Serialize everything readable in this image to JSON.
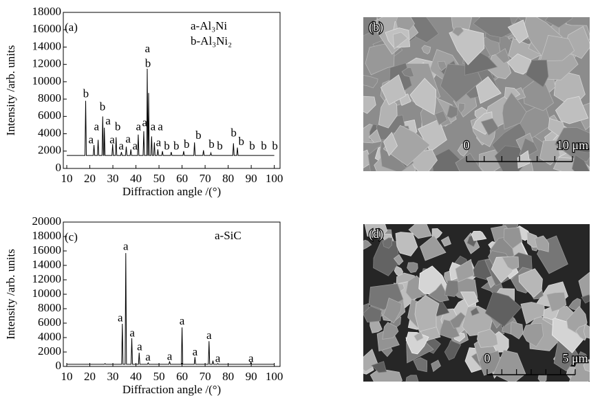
{
  "chart_data": [
    {
      "type": "line",
      "panel_label": "(a)",
      "legend": [
        "a-Al₃Ni",
        "b-Al₃Ni₂"
      ],
      "ylabel": "Intensity /arb. units",
      "xlabel": "Diffraction angle /(°)",
      "xlim": [
        8.5,
        102.5
      ],
      "ylim": [
        0,
        18000
      ],
      "xticks": [
        10,
        20,
        30,
        40,
        50,
        60,
        70,
        80,
        90,
        100
      ],
      "yticks": [
        0,
        2000,
        4000,
        6000,
        8000,
        10000,
        12000,
        14000,
        16000,
        18000
      ],
      "color": "#000000",
      "x": [
        10,
        17.9,
        18.2,
        18.5,
        21.5,
        21.8,
        22.1,
        23.3,
        23.6,
        23.9,
        25.3,
        25.6,
        25.9,
        26.1,
        26.3,
        26.6,
        29.6,
        29.9,
        30.2,
        31.1,
        31.4,
        31.7,
        33.4,
        33.7,
        34.0,
        35.5,
        35.8,
        36.1,
        37.5,
        37.8,
        38.1,
        40.7,
        41.0,
        41.3,
        43.1,
        43.4,
        43.7,
        44.7,
        44.9,
        45.2,
        45.3,
        45.5,
        45.8,
        46.5,
        46.8,
        47.1,
        47.7,
        48.0,
        48.3,
        49.2,
        49.5,
        49.8,
        51.2,
        51.5,
        51.8,
        55.0,
        55.3,
        55.6,
        60.4,
        60.7,
        61.0,
        65.1,
        65.4,
        65.7,
        69.0,
        69.3,
        69.6,
        72.2,
        72.5,
        72.8,
        82.0,
        82.3,
        82.6,
        83.7,
        84.0,
        84.3,
        100
      ],
      "values": [
        1500,
        1500,
        7800,
        1500,
        1500,
        2700,
        1500,
        1500,
        3300,
        1500,
        1500,
        6000,
        1500,
        1500,
        4700,
        1500,
        1500,
        2800,
        1500,
        1500,
        3600,
        1500,
        1500,
        1900,
        1500,
        1500,
        2500,
        1500,
        1500,
        2200,
        1500,
        1500,
        3900,
        1500,
        1500,
        4300,
        1500,
        1500,
        11500,
        1500,
        1500,
        8700,
        1500,
        1500,
        3700,
        1500,
        1500,
        3000,
        1500,
        1500,
        2200,
        1500,
        1500,
        2000,
        1500,
        1500,
        1900,
        1500,
        1500,
        2000,
        1500,
        1500,
        3000,
        1500,
        1500,
        2100,
        1500,
        1500,
        1800,
        1500,
        1500,
        2900,
        1500,
        1500,
        2400,
        1500,
        1500
      ],
      "annotations": [
        {
          "x": 18.3,
          "y": 8500,
          "text": "b"
        },
        {
          "x": 20.5,
          "y": 3200,
          "text": "a"
        },
        {
          "x": 22.9,
          "y": 4700,
          "text": "a"
        },
        {
          "x": 25.5,
          "y": 7000,
          "text": "b"
        },
        {
          "x": 27.9,
          "y": 5400,
          "text": "a"
        },
        {
          "x": 29.7,
          "y": 3200,
          "text": "a"
        },
        {
          "x": 32.1,
          "y": 4700,
          "text": "b"
        },
        {
          "x": 33.6,
          "y": 2500,
          "text": "a"
        },
        {
          "x": 36.6,
          "y": 3300,
          "text": "a"
        },
        {
          "x": 39.6,
          "y": 2500,
          "text": "a"
        },
        {
          "x": 41.1,
          "y": 4700,
          "text": "a"
        },
        {
          "x": 43.8,
          "y": 5200,
          "text": "a"
        },
        {
          "x": 45.0,
          "y": 13700,
          "text": "a"
        },
        {
          "x": 45.2,
          "y": 12000,
          "text": "b"
        },
        {
          "x": 47.4,
          "y": 4700,
          "text": "a"
        },
        {
          "x": 49.8,
          "y": 2900,
          "text": "a"
        },
        {
          "x": 50.6,
          "y": 4700,
          "text": "a"
        },
        {
          "x": 53.4,
          "y": 2500,
          "text": "b"
        },
        {
          "x": 57.5,
          "y": 2500,
          "text": "b"
        },
        {
          "x": 62.0,
          "y": 2700,
          "text": "b"
        },
        {
          "x": 67.1,
          "y": 3700,
          "text": "b"
        },
        {
          "x": 72.8,
          "y": 2700,
          "text": "b"
        },
        {
          "x": 76.4,
          "y": 2500,
          "text": "b"
        },
        {
          "x": 82.4,
          "y": 4000,
          "text": "b"
        },
        {
          "x": 85.7,
          "y": 3000,
          "text": "b"
        },
        {
          "x": 90.4,
          "y": 2500,
          "text": "b"
        },
        {
          "x": 95.5,
          "y": 2500,
          "text": "b"
        },
        {
          "x": 100.3,
          "y": 2500,
          "text": "b"
        }
      ]
    },
    {
      "type": "line",
      "panel_label": "(c)",
      "legend": [
        "a-SiC"
      ],
      "ylabel": "Intensity /arb. units",
      "xlabel": "Diffraction angle /(°)",
      "xlim": [
        8.5,
        102.5
      ],
      "ylim": [
        0,
        20000
      ],
      "xticks": [
        10,
        20,
        30,
        40,
        50,
        60,
        70,
        80,
        90,
        100
      ],
      "yticks": [
        0,
        2000,
        4000,
        6000,
        8000,
        10000,
        12000,
        14000,
        16000,
        18000,
        20000
      ],
      "color": "#000000",
      "x": [
        10,
        26.3,
        26.6,
        26.9,
        33.8,
        34.1,
        34.4,
        35.3,
        35.6,
        35.9,
        37.9,
        38.2,
        38.5,
        41.1,
        41.4,
        41.7,
        45.0,
        45.3,
        45.6,
        54.3,
        54.6,
        54.9,
        59.7,
        60.0,
        60.3,
        65.3,
        65.6,
        65.9,
        71.4,
        71.7,
        72.0,
        73.1,
        73.4,
        73.7,
        75.2,
        75.5,
        75.8,
        89.6,
        89.9,
        90.2,
        100
      ],
      "values": [
        300,
        300,
        400,
        300,
        300,
        5900,
        300,
        300,
        15700,
        300,
        300,
        3900,
        300,
        300,
        1900,
        300,
        300,
        500,
        300,
        300,
        700,
        300,
        300,
        5400,
        300,
        300,
        1300,
        300,
        300,
        3500,
        300,
        300,
        800,
        300,
        300,
        400,
        300,
        300,
        600,
        300,
        300
      ],
      "annotations": [
        {
          "x": 33.2,
          "y": 6600,
          "text": "a"
        },
        {
          "x": 35.6,
          "y": 16500,
          "text": "a"
        },
        {
          "x": 38.4,
          "y": 4500,
          "text": "a"
        },
        {
          "x": 41.6,
          "y": 2600,
          "text": "a"
        },
        {
          "x": 45.2,
          "y": 1200,
          "text": "a"
        },
        {
          "x": 54.6,
          "y": 1300,
          "text": "a"
        },
        {
          "x": 60.0,
          "y": 6200,
          "text": "a"
        },
        {
          "x": 65.6,
          "y": 1900,
          "text": "a"
        },
        {
          "x": 71.7,
          "y": 4200,
          "text": "a"
        },
        {
          "x": 75.5,
          "y": 1000,
          "text": "a"
        },
        {
          "x": 89.9,
          "y": 1000,
          "text": "a"
        }
      ]
    }
  ],
  "images": [
    {
      "label": "(b)",
      "scale_start": "0",
      "scale_end": "10 μm"
    },
    {
      "label": "(d)",
      "scale_start": "0",
      "scale_end": "5 μm"
    }
  ]
}
